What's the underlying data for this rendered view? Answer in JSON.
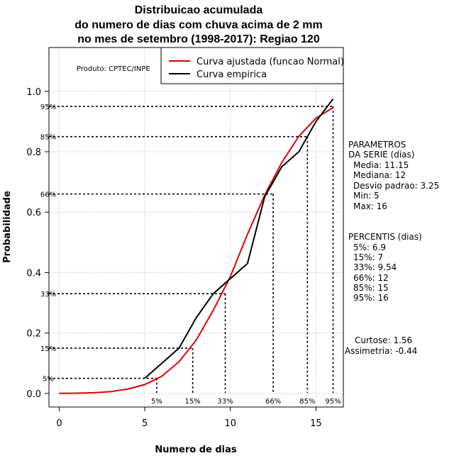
{
  "chart_data": {
    "type": "line",
    "title": [
      "Distribuicao acumulada",
      "do numero de dias com chuva acima de 2 mm",
      "no mes de setembro (1998-2017): Regiao 120"
    ],
    "xlabel": "Numero de dias",
    "ylabel": "Probabilidade",
    "xlim": [
      -0.6,
      16.6
    ],
    "ylim": [
      -0.045,
      1.145
    ],
    "xticks": [
      0,
      5,
      10,
      15
    ],
    "yticks": [
      0.0,
      0.2,
      0.4,
      0.6,
      0.8,
      1.0
    ],
    "ytick_labels": [
      "0.0",
      "0.2",
      "0.4",
      "0.6",
      "0.8",
      "1.0"
    ],
    "grid": true,
    "credit": "Produto: CPTEC/INPE",
    "legend_position": "top-right",
    "series": [
      {
        "name": "Curva ajustada (funcao Normal)",
        "color": "#dd0000",
        "x": [
          0,
          1,
          2,
          3,
          4,
          5,
          6,
          7,
          8,
          9,
          10,
          11,
          12,
          13,
          14,
          15,
          16
        ],
        "y": [
          0.0003,
          0.0008,
          0.0023,
          0.0059,
          0.0142,
          0.0295,
          0.0571,
          0.105,
          0.176,
          0.275,
          0.387,
          0.527,
          0.656,
          0.764,
          0.851,
          0.911,
          0.946
        ]
      },
      {
        "name": "Curva empirica",
        "color": "#000000",
        "x": [
          5,
          7,
          8,
          9,
          10,
          11,
          12,
          13,
          14,
          15,
          16
        ],
        "y": [
          0.05,
          0.15,
          0.25,
          0.33,
          0.38,
          0.43,
          0.65,
          0.75,
          0.8,
          0.9,
          0.975
        ]
      }
    ],
    "percentile_lines": [
      {
        "label": "5%",
        "prob": 0.05,
        "x": 5.7
      },
      {
        "label": "15%",
        "prob": 0.15,
        "x": 7.8
      },
      {
        "label": "33%",
        "prob": 0.33,
        "x": 9.7
      },
      {
        "label": "66%",
        "prob": 0.66,
        "x": 12.5
      },
      {
        "label": "85%",
        "prob": 0.85,
        "x": 14.5
      },
      {
        "label": "95%",
        "prob": 0.95,
        "x": 16.0
      }
    ]
  },
  "side": {
    "params_header": [
      "PARAMETROS",
      "DA SERIE (dias)"
    ],
    "params": [
      "Media: 11.15",
      "Mediana: 12",
      "Desvio padrao: 3.25",
      "Min: 5",
      "Max: 16"
    ],
    "percentis_header": "PERCENTIS (dias)",
    "percentis": [
      "5%: 6.9",
      "15%: 7",
      "33%: 9.54",
      "66%: 12",
      "85%: 15",
      "95%: 16"
    ],
    "curtose": "Curtose: 1.56",
    "assimetria": "Assimetria: -0.44"
  }
}
